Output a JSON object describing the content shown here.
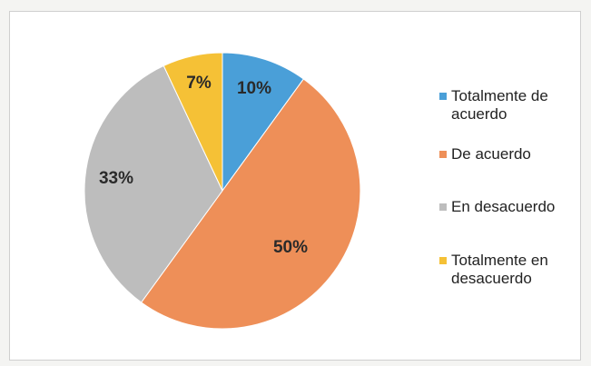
{
  "chart_data": {
    "type": "pie",
    "title": "",
    "categories": [
      "Totalmente de acuerdo",
      "De acuerdo",
      "En desacuerdo",
      "Totalmente en desacuerdo"
    ],
    "values": [
      10,
      50,
      33,
      7
    ],
    "data_labels": [
      "10%",
      "50%",
      "33%",
      "7%"
    ],
    "colors": [
      "#4a9fd8",
      "#ee8f58",
      "#bdbdbd",
      "#f5c136"
    ],
    "legend": {
      "position": "right",
      "entries": [
        {
          "label": "Totalmente de\nacuerdo",
          "color": "#4a9fd8"
        },
        {
          "label": "De acuerdo",
          "color": "#ee8f58"
        },
        {
          "label": "En desacuerdo",
          "color": "#bdbdbd"
        },
        {
          "label": "Totalmente en\ndesacuerdo",
          "color": "#f5c136"
        }
      ]
    }
  }
}
